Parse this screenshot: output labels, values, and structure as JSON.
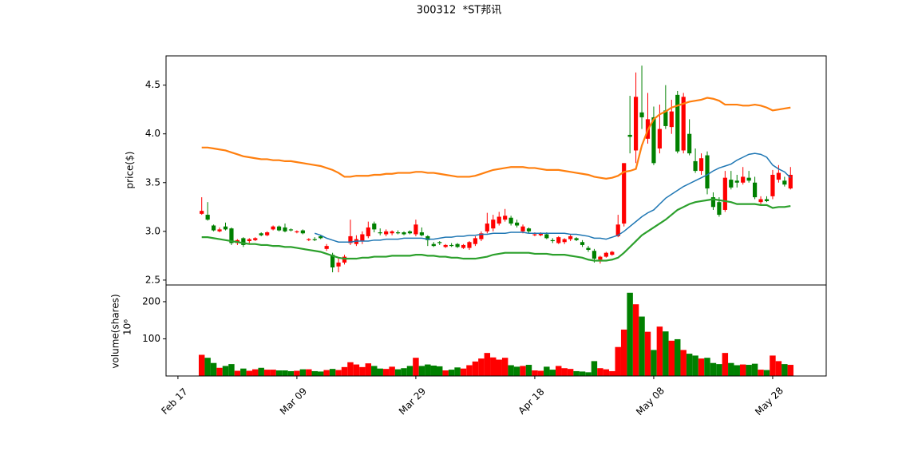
{
  "chart_data": {
    "type": "candlestick",
    "title": "300312  *ST邦讯",
    "x": [
      "Feb 21",
      "Feb 22",
      "Feb 23",
      "Feb 24",
      "Feb 25",
      "Feb 26",
      "Feb 27",
      "Feb 28",
      "Mar 01",
      "Mar 02",
      "Mar 03",
      "Mar 04",
      "Mar 05",
      "Mar 06",
      "Mar 07",
      "Mar 08",
      "Mar 09",
      "Mar 10",
      "Mar 11",
      "Mar 12",
      "Mar 13",
      "Mar 14",
      "Mar 15",
      "Mar 16",
      "Mar 17",
      "Mar 18",
      "Mar 19",
      "Mar 20",
      "Mar 21",
      "Mar 22",
      "Mar 23",
      "Mar 24",
      "Mar 25",
      "Mar 26",
      "Mar 27",
      "Mar 28",
      "Mar 29",
      "Mar 30",
      "Mar 31",
      "Apr 01",
      "Apr 02",
      "Apr 03",
      "Apr 04",
      "Apr 05",
      "Apr 06",
      "Apr 07",
      "Apr 08",
      "Apr 09",
      "Apr 10",
      "Apr 11",
      "Apr 12",
      "Apr 13",
      "Apr 14",
      "Apr 15",
      "Apr 16",
      "Apr 17",
      "Apr 18",
      "Apr 19",
      "Apr 20",
      "Apr 21",
      "Apr 22",
      "Apr 23",
      "Apr 24",
      "Apr 25",
      "Apr 26",
      "Apr 27",
      "Apr 28",
      "Apr 29",
      "Apr 30",
      "May 01",
      "May 02",
      "May 03",
      "May 04",
      "May 05",
      "May 06",
      "May 07",
      "May 08",
      "May 09",
      "May 10",
      "May 11",
      "May 12",
      "May 13",
      "May 14",
      "May 15",
      "May 16",
      "May 17",
      "May 18",
      "May 19",
      "May 20",
      "May 21",
      "May 22",
      "May 23",
      "May 24",
      "May 25",
      "May 26",
      "May 27",
      "May 28",
      "May 29",
      "May 30",
      "May 31"
    ],
    "xlim": [
      "Feb 15",
      "Jun 06"
    ],
    "xticks": [
      "Feb 17",
      "Mar 09",
      "Mar 29",
      "Apr 18",
      "May 08",
      "May 28"
    ],
    "open": [
      3.18,
      3.17,
      3.06,
      3.0,
      3.05,
      3.03,
      2.88,
      2.93,
      2.9,
      2.91,
      2.98,
      2.96,
      3.02,
      3.05,
      3.04,
      3.02,
      2.99,
      3.01,
      2.91,
      2.92,
      2.95,
      2.82,
      2.76,
      2.64,
      2.68,
      2.88,
      2.87,
      2.9,
      2.95,
      3.08,
      2.99,
      2.97,
      2.98,
      2.99,
      2.99,
      3.0,
      2.97,
      2.99,
      2.95,
      2.87,
      2.89,
      2.84,
      2.86,
      2.87,
      2.83,
      2.83,
      2.87,
      2.92,
      3.0,
      3.03,
      3.08,
      3.12,
      3.14,
      3.09,
      3.0,
      3.03,
      2.96,
      2.96,
      2.97,
      2.91,
      2.88,
      2.89,
      2.92,
      2.93,
      2.89,
      2.83,
      2.8,
      2.71,
      2.74,
      2.76,
      2.95,
      3.08,
      3.99,
      3.83,
      4.22,
      3.95,
      4.17,
      3.85,
      4.24,
      4.07,
      4.4,
      3.83,
      4.0,
      3.72,
      3.62,
      3.78,
      3.35,
      3.3,
      3.22,
      3.53,
      3.52,
      3.5,
      3.55,
      3.5,
      3.3,
      3.33,
      3.36,
      3.53,
      3.52,
      3.44
    ],
    "high": [
      3.35,
      3.3,
      3.07,
      3.04,
      3.09,
      3.04,
      2.92,
      2.94,
      2.93,
      2.94,
      2.99,
      3.0,
      3.06,
      3.06,
      3.08,
      3.03,
      3.01,
      3.02,
      2.93,
      2.94,
      2.96,
      2.87,
      2.78,
      2.72,
      2.76,
      3.12,
      2.96,
      3.0,
      3.1,
      3.1,
      3.03,
      3.02,
      3.01,
      3.01,
      3.0,
      3.01,
      3.12,
      3.04,
      2.96,
      2.89,
      2.9,
      2.87,
      2.88,
      2.88,
      2.87,
      2.9,
      2.95,
      3.0,
      3.19,
      3.17,
      3.2,
      3.23,
      3.16,
      3.12,
      3.07,
      3.04,
      2.99,
      2.99,
      2.99,
      2.93,
      2.95,
      2.93,
      2.97,
      2.94,
      2.91,
      2.85,
      2.82,
      2.75,
      2.79,
      2.8,
      3.17,
      3.7,
      4.39,
      4.63,
      4.7,
      4.42,
      4.28,
      4.3,
      4.5,
      4.35,
      4.44,
      4.42,
      4.15,
      3.85,
      3.8,
      3.82,
      3.4,
      3.35,
      3.62,
      3.62,
      3.58,
      3.66,
      3.62,
      3.56,
      3.36,
      3.36,
      3.63,
      3.68,
      3.56,
      3.66
    ],
    "low": [
      3.17,
      3.11,
      3.0,
      2.99,
      3.01,
      2.86,
      2.86,
      2.84,
      2.88,
      2.9,
      2.95,
      2.95,
      3.01,
      3.0,
      2.99,
      3.0,
      2.98,
      2.97,
      2.9,
      2.9,
      2.92,
      2.8,
      2.58,
      2.58,
      2.66,
      2.86,
      2.85,
      2.87,
      2.93,
      2.99,
      2.96,
      2.95,
      2.96,
      2.97,
      2.96,
      2.97,
      2.95,
      2.95,
      2.85,
      2.84,
      2.86,
      2.83,
      2.84,
      2.83,
      2.82,
      2.81,
      2.85,
      2.9,
      2.98,
      3.0,
      3.06,
      3.1,
      3.06,
      3.04,
      2.98,
      2.98,
      2.95,
      2.95,
      2.92,
      2.88,
      2.87,
      2.87,
      2.9,
      2.9,
      2.84,
      2.79,
      2.68,
      2.67,
      2.73,
      2.75,
      2.94,
      3.05,
      3.8,
      3.7,
      4.05,
      3.9,
      3.68,
      3.8,
      4.05,
      4.0,
      3.8,
      3.8,
      3.78,
      3.6,
      3.58,
      3.38,
      3.22,
      3.15,
      3.2,
      3.43,
      3.45,
      3.48,
      3.5,
      3.33,
      3.28,
      3.3,
      3.33,
      3.5,
      3.46,
      3.43
    ],
    "close": [
      3.21,
      3.12,
      3.01,
      3.02,
      3.02,
      2.88,
      2.91,
      2.86,
      2.92,
      2.93,
      2.96,
      2.99,
      3.05,
      3.01,
      3.0,
      3.01,
      3.0,
      2.98,
      2.92,
      2.91,
      2.93,
      2.85,
      2.63,
      2.68,
      2.74,
      2.95,
      2.92,
      2.97,
      3.04,
      3.02,
      2.98,
      3.0,
      3.0,
      2.98,
      2.97,
      2.98,
      3.07,
      2.96,
      2.91,
      2.85,
      2.88,
      2.86,
      2.85,
      2.84,
      2.86,
      2.89,
      2.93,
      2.98,
      3.08,
      3.12,
      3.15,
      3.16,
      3.08,
      3.06,
      3.05,
      3.0,
      2.97,
      2.98,
      2.93,
      2.9,
      2.94,
      2.92,
      2.95,
      2.91,
      2.86,
      2.81,
      2.72,
      2.74,
      2.78,
      2.79,
      3.07,
      3.7,
      3.97,
      4.38,
      4.17,
      4.15,
      3.7,
      4.05,
      4.08,
      4.23,
      3.82,
      4.38,
      3.8,
      3.62,
      3.75,
      3.44,
      3.25,
      3.17,
      3.55,
      3.45,
      3.5,
      3.56,
      3.52,
      3.35,
      3.33,
      3.31,
      3.58,
      3.6,
      3.48,
      3.58
    ],
    "up_color": "#ff0000",
    "down_color": "#008000",
    "ylabel": "price($)",
    "ylim": [
      2.45,
      4.8
    ],
    "yticks": [
      2.5,
      {
        "value": 3,
        "label": "3.0"
      },
      3.5,
      {
        "value": 4,
        "label": "4.0"
      },
      4.5
    ],
    "overlays": [
      {
        "color": "#1f77b4",
        "values": [
          null,
          null,
          null,
          null,
          null,
          null,
          null,
          null,
          null,
          null,
          null,
          null,
          null,
          null,
          null,
          null,
          null,
          null,
          null,
          2.98,
          2.96,
          2.93,
          2.91,
          2.89,
          2.89,
          2.89,
          2.9,
          2.9,
          2.9,
          2.91,
          2.91,
          2.92,
          2.92,
          2.92,
          2.93,
          2.93,
          2.93,
          2.93,
          2.92,
          2.92,
          2.93,
          2.94,
          2.94,
          2.95,
          2.95,
          2.96,
          2.96,
          2.97,
          2.97,
          2.98,
          2.98,
          2.98,
          2.99,
          2.99,
          2.99,
          2.98,
          2.98,
          2.98,
          2.98,
          2.98,
          2.98,
          2.98,
          2.97,
          2.97,
          2.96,
          2.95,
          2.93,
          2.93,
          2.92,
          2.94,
          2.96,
          3.0,
          3.05,
          3.1,
          3.15,
          3.19,
          3.22,
          3.28,
          3.34,
          3.38,
          3.42,
          3.46,
          3.49,
          3.52,
          3.55,
          3.58,
          3.62,
          3.65,
          3.67,
          3.69,
          3.73,
          3.76,
          3.79,
          3.8,
          3.79,
          3.76,
          3.68,
          3.64,
          3.61,
          3.55
        ]
      },
      {
        "color": "#ff7f0e",
        "values": [
          3.86,
          3.86,
          3.85,
          3.84,
          3.83,
          3.81,
          3.79,
          3.77,
          3.76,
          3.75,
          3.74,
          3.74,
          3.73,
          3.73,
          3.72,
          3.72,
          3.71,
          3.7,
          3.69,
          3.68,
          3.67,
          3.65,
          3.63,
          3.6,
          3.56,
          3.56,
          3.57,
          3.57,
          3.57,
          3.58,
          3.58,
          3.59,
          3.59,
          3.6,
          3.6,
          3.6,
          3.61,
          3.61,
          3.6,
          3.6,
          3.59,
          3.58,
          3.57,
          3.56,
          3.56,
          3.56,
          3.57,
          3.59,
          3.61,
          3.63,
          3.64,
          3.65,
          3.66,
          3.66,
          3.66,
          3.65,
          3.65,
          3.64,
          3.63,
          3.63,
          3.63,
          3.62,
          3.61,
          3.6,
          3.59,
          3.58,
          3.56,
          3.55,
          3.54,
          3.55,
          3.57,
          3.61,
          3.62,
          3.64,
          3.88,
          4.04,
          4.15,
          4.2,
          4.23,
          4.27,
          4.29,
          4.31,
          4.33,
          4.34,
          4.35,
          4.37,
          4.36,
          4.34,
          4.3,
          4.3,
          4.3,
          4.29,
          4.29,
          4.3,
          4.29,
          4.27,
          4.24,
          4.25,
          4.26,
          4.27
        ]
      },
      {
        "color": "#2ca02c",
        "values": [
          2.94,
          2.94,
          2.93,
          2.92,
          2.91,
          2.9,
          2.89,
          2.88,
          2.87,
          2.87,
          2.86,
          2.86,
          2.85,
          2.85,
          2.84,
          2.84,
          2.83,
          2.82,
          2.81,
          2.8,
          2.79,
          2.77,
          2.75,
          2.73,
          2.72,
          2.72,
          2.72,
          2.73,
          2.73,
          2.74,
          2.74,
          2.74,
          2.75,
          2.75,
          2.75,
          2.75,
          2.76,
          2.76,
          2.75,
          2.75,
          2.74,
          2.74,
          2.73,
          2.73,
          2.72,
          2.72,
          2.72,
          2.73,
          2.74,
          2.76,
          2.77,
          2.78,
          2.78,
          2.78,
          2.78,
          2.78,
          2.77,
          2.77,
          2.77,
          2.76,
          2.76,
          2.76,
          2.75,
          2.74,
          2.73,
          2.71,
          2.7,
          2.7,
          2.7,
          2.71,
          2.73,
          2.78,
          2.84,
          2.9,
          2.96,
          3.0,
          3.04,
          3.08,
          3.12,
          3.17,
          3.22,
          3.25,
          3.28,
          3.3,
          3.31,
          3.32,
          3.33,
          3.32,
          3.31,
          3.3,
          3.28,
          3.28,
          3.28,
          3.28,
          3.27,
          3.27,
          3.24,
          3.25,
          3.25,
          3.26
        ]
      }
    ],
    "volume": {
      "ylabel": "volume(shares)",
      "scale_label": "10⁶",
      "values": [
        57,
        49,
        35,
        22,
        27,
        32,
        14,
        20,
        14,
        18,
        22,
        17,
        17,
        15,
        15,
        13,
        14,
        18,
        18,
        13,
        12,
        16,
        19,
        16,
        24,
        37,
        31,
        24,
        34,
        27,
        20,
        19,
        25,
        18,
        21,
        27,
        49,
        27,
        31,
        28,
        26,
        15,
        17,
        23,
        20,
        29,
        39,
        47,
        62,
        50,
        44,
        49,
        29,
        25,
        27,
        30,
        15,
        14,
        25,
        17,
        27,
        21,
        19,
        13,
        12,
        10,
        40,
        21,
        18,
        13,
        78,
        125,
        224,
        193,
        160,
        119,
        70,
        133,
        120,
        95,
        99,
        70,
        60,
        55,
        47,
        49,
        35,
        32,
        62,
        35,
        29,
        31,
        30,
        33,
        17,
        16,
        55,
        40,
        32,
        30
      ],
      "ylim": [
        0,
        245
      ],
      "yticks": [
        100,
        200
      ]
    }
  }
}
